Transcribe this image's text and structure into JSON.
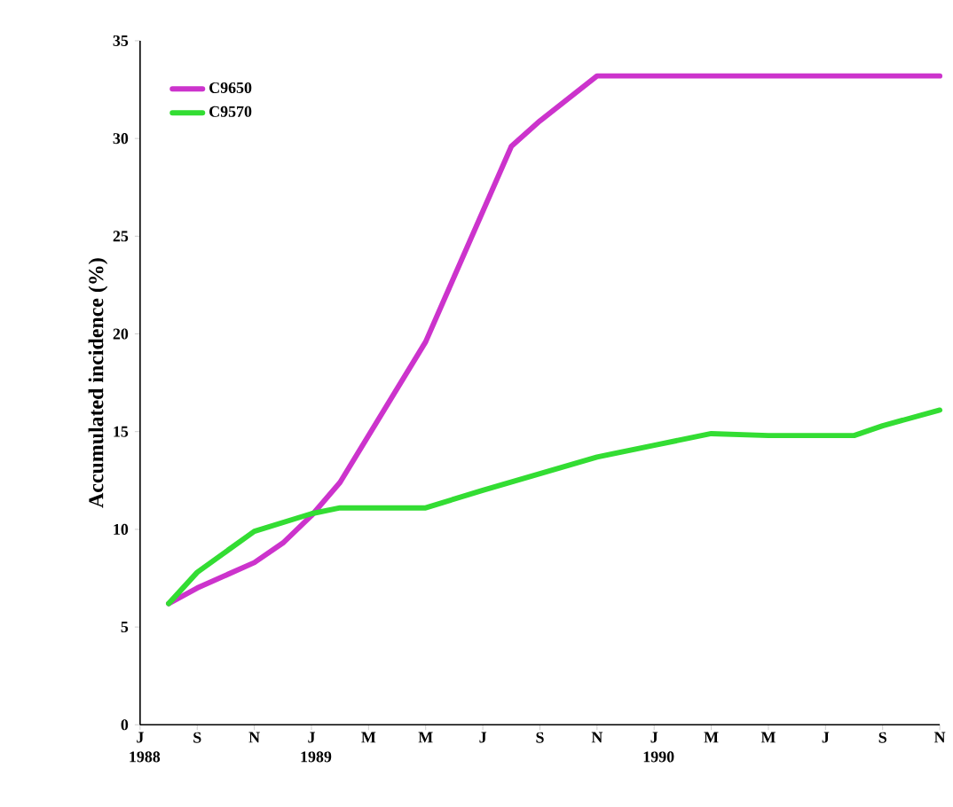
{
  "chart_data": {
    "type": "line",
    "ylabel": "Accumulated incidence (%)",
    "xlim": [
      "1988-07",
      "1990-11"
    ],
    "xticks": [
      {
        "value": "1988-07",
        "label": "J 1988"
      },
      {
        "value": "1988-09",
        "label": "S"
      },
      {
        "value": "1988-11",
        "label": "N"
      },
      {
        "value": "1989-01",
        "label": "J 1989"
      },
      {
        "value": "1989-03",
        "label": "M"
      },
      {
        "value": "1989-05",
        "label": "M"
      },
      {
        "value": "1989-07",
        "label": "J"
      },
      {
        "value": "1989-09",
        "label": "S"
      },
      {
        "value": "1989-11",
        "label": "N"
      },
      {
        "value": "1990-01",
        "label": "J 1990"
      },
      {
        "value": "1990-03",
        "label": "M"
      },
      {
        "value": "1990-05",
        "label": "M"
      },
      {
        "value": "1990-07",
        "label": "J"
      },
      {
        "value": "1990-09",
        "label": "S"
      },
      {
        "value": "1990-11",
        "label": "N"
      }
    ],
    "ylim": [
      0,
      35
    ],
    "yticks": [
      0,
      5,
      10,
      15,
      20,
      25,
      30,
      35
    ],
    "legend": "top left",
    "grid": false,
    "marker": "none",
    "line_style": "solid",
    "series": [
      {
        "name": "C9650",
        "color": "#cc33cc",
        "x": [
          "1988-08",
          "1988-09",
          "1988-11",
          "1988-12",
          "1989-01",
          "1989-02",
          "1989-05",
          "1989-08",
          "1989-09",
          "1989-11",
          "1990-11"
        ],
        "values": [
          6.2,
          7.0,
          8.3,
          9.3,
          10.7,
          12.4,
          19.6,
          29.6,
          30.9,
          33.2,
          33.2
        ]
      },
      {
        "name": "C9570",
        "color": "#33dd33",
        "x": [
          "1988-08",
          "1988-09",
          "1988-11",
          "1989-01",
          "1989-02",
          "1989-05",
          "1989-07",
          "1989-11",
          "1990-01",
          "1990-03",
          "1990-05",
          "1990-08",
          "1990-09",
          "1990-11"
        ],
        "values": [
          6.2,
          7.8,
          9.9,
          10.8,
          11.1,
          11.1,
          12.0,
          13.7,
          14.3,
          14.9,
          14.8,
          14.8,
          15.3,
          16.1
        ]
      }
    ]
  }
}
